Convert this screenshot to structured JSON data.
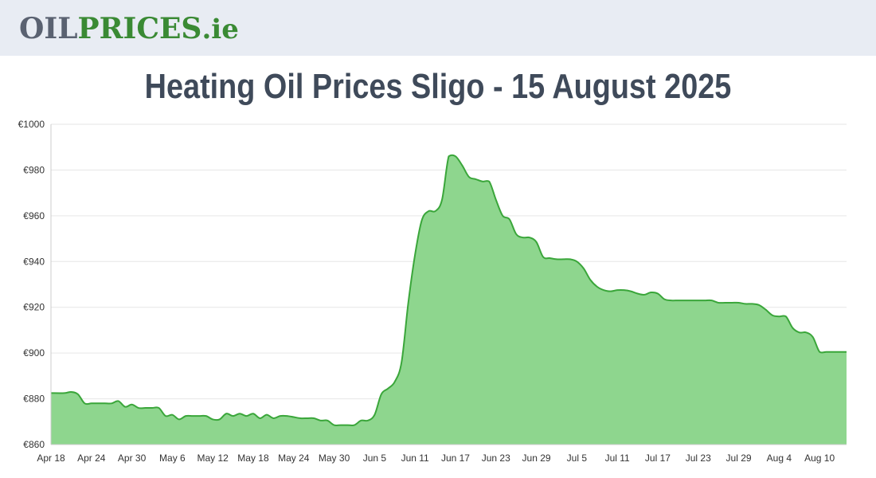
{
  "header": {
    "logo_part1": "OIL",
    "logo_part2": "PRICES",
    "logo_part3": ".ie",
    "bg_color": "#e8ecf3"
  },
  "title": "Heating Oil Prices Sligo - 15 August 2025",
  "chart_data": {
    "type": "area",
    "title": "Heating Oil Prices Sligo - 15 August 2025",
    "xlabel": "",
    "ylabel": "",
    "ylim": [
      860,
      1000
    ],
    "y_ticks": [
      "€1000",
      "€980",
      "€960",
      "€940",
      "€920",
      "€900",
      "€880",
      "€860"
    ],
    "y_tick_values": [
      1000,
      980,
      960,
      940,
      920,
      900,
      880,
      860
    ],
    "x_tick_labels": [
      "Apr 18",
      "Apr 24",
      "Apr 30",
      "May 6",
      "May 12",
      "May 18",
      "May 24",
      "May 30",
      "Jun 5",
      "Jun 11",
      "Jun 17",
      "Jun 23",
      "Jun 29",
      "Jul 5",
      "Jul 11",
      "Jul 17",
      "Jul 23",
      "Jul 29",
      "Aug 4",
      "Aug 10"
    ],
    "x_tick_days": [
      0,
      6,
      12,
      18,
      24,
      30,
      36,
      42,
      48,
      54,
      60,
      66,
      72,
      78,
      84,
      90,
      96,
      102,
      108,
      114
    ],
    "grid": true,
    "line_color": "#3aa63a",
    "fill_color": "#8ed68e",
    "series": [
      {
        "x": [
          0,
          2,
          3,
          4,
          5,
          6,
          7,
          8,
          9,
          10,
          11,
          12,
          13,
          14,
          15,
          16,
          17,
          18,
          19,
          20,
          21,
          22,
          23,
          24,
          25,
          26,
          27,
          28,
          29,
          30,
          31,
          32,
          33,
          34,
          35,
          36,
          37,
          38,
          39,
          40,
          41,
          42,
          43,
          44,
          45,
          46,
          47,
          48,
          49,
          50,
          51,
          52,
          53,
          54,
          55,
          56,
          57,
          58,
          59,
          60,
          61,
          62,
          63,
          64,
          65,
          66,
          67,
          68,
          69,
          70,
          71,
          72,
          73,
          74,
          75,
          76,
          77,
          78,
          79,
          80,
          81,
          82,
          83,
          84,
          85,
          86,
          87,
          88,
          89,
          90,
          91,
          92,
          93,
          94,
          95,
          96,
          97,
          98,
          99,
          100,
          101,
          102,
          103,
          104,
          105,
          106,
          107,
          108,
          109,
          110,
          111,
          112,
          113,
          114,
          115,
          116,
          117,
          118
        ],
        "y": [
          882.5,
          882.5,
          883,
          882,
          878,
          878,
          878,
          878,
          878,
          879,
          876.5,
          877.5,
          876,
          876,
          876,
          876,
          872.5,
          873,
          871,
          872.5,
          872.5,
          872.5,
          872.5,
          871,
          871,
          873.5,
          872.5,
          873.5,
          872.5,
          873.5,
          871.5,
          873,
          871.5,
          872.5,
          872.5,
          872,
          871.5,
          871.5,
          871.5,
          870.5,
          870.5,
          868.5,
          868.5,
          868.5,
          868.5,
          870.5,
          870.5,
          873,
          882,
          884.5,
          887.5,
          896,
          922,
          943,
          958,
          962,
          962,
          967,
          986,
          986,
          982,
          977,
          976,
          975,
          975,
          967,
          960,
          958.5,
          952,
          950.5,
          950.5,
          948.5,
          942,
          941.5,
          941,
          941,
          941,
          940,
          937,
          932,
          929,
          927.5,
          927,
          927.5,
          927.5,
          927,
          926,
          925.5,
          926.5,
          926,
          923.5,
          923,
          923,
          923,
          923,
          923,
          923,
          923,
          922,
          922,
          922,
          922,
          921.5,
          921.5,
          921,
          919,
          916.5,
          916,
          916,
          911,
          909,
          909,
          907,
          900.5,
          900.5,
          900.5,
          900.5,
          900.5
        ]
      }
    ]
  }
}
